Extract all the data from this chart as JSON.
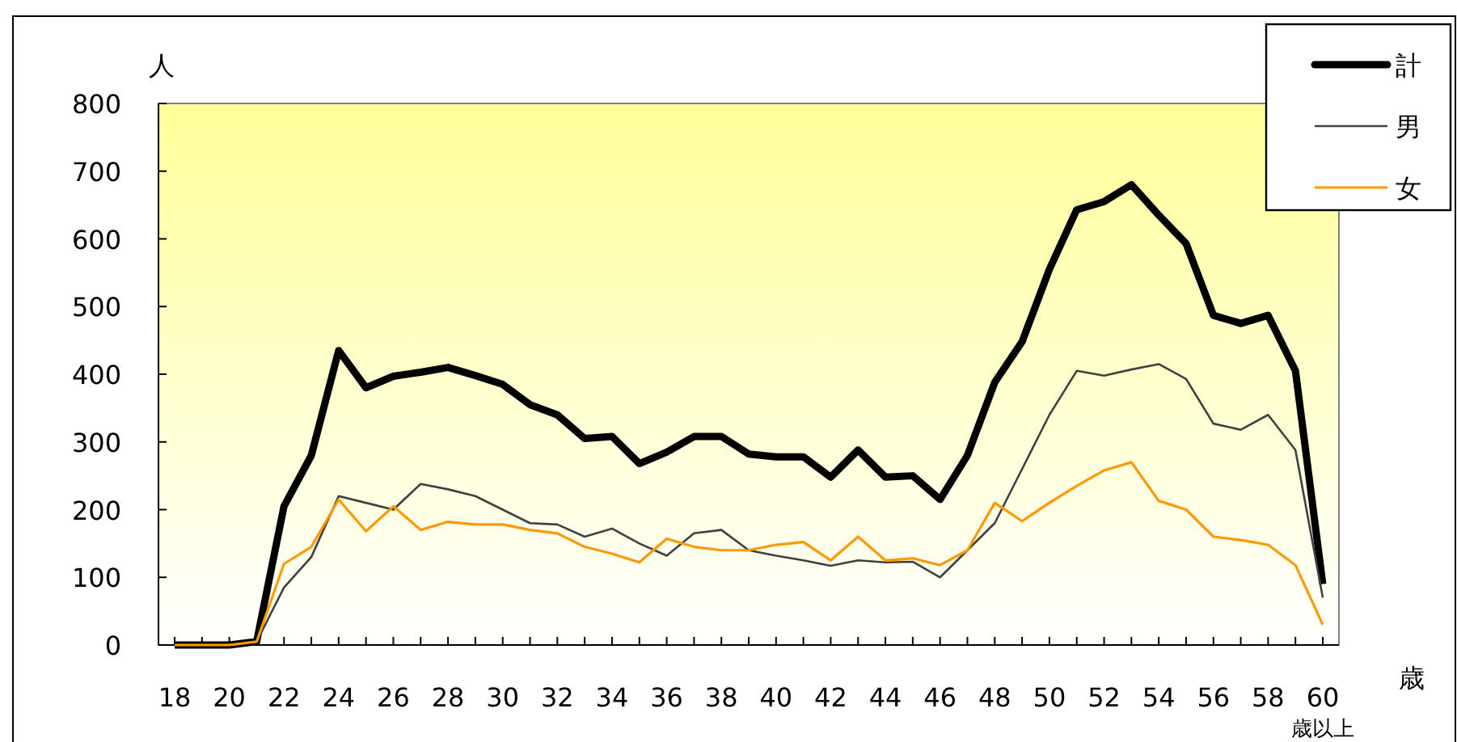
{
  "chart_data": {
    "type": "line",
    "xlabel": "歳",
    "ylabel": "人",
    "categories": [
      "18",
      null,
      "20",
      null,
      "22",
      null,
      "24",
      null,
      "26",
      null,
      "28",
      null,
      "30",
      null,
      "32",
      null,
      "34",
      null,
      "36",
      null,
      "38",
      null,
      "40",
      null,
      "42",
      null,
      "44",
      null,
      "46",
      null,
      "48",
      null,
      "50",
      null,
      "52",
      null,
      "54",
      null,
      "56",
      null,
      "58",
      null,
      "60"
    ],
    "annotations": [
      "歳以上"
    ],
    "ylim": [
      0,
      800
    ],
    "yticks": [
      0,
      100,
      200,
      300,
      400,
      500,
      600,
      700,
      800
    ],
    "legend": "top right",
    "grid": false,
    "series": [
      {
        "name": "計",
        "color": "#000000",
        "values": [
          0,
          0,
          0,
          5,
          205,
          280,
          435,
          380,
          397,
          403,
          410,
          398,
          385,
          355,
          340,
          305,
          308,
          268,
          285,
          308,
          308,
          282,
          278,
          278,
          248,
          288,
          248,
          250,
          215,
          280,
          388,
          448,
          555,
          643,
          655,
          680,
          635,
          593,
          487,
          475,
          487,
          405,
          90
        ]
      },
      {
        "name": "男",
        "color": "#404040",
        "values": [
          0,
          0,
          0,
          5,
          85,
          130,
          220,
          210,
          200,
          238,
          230,
          220,
          200,
          180,
          178,
          160,
          172,
          150,
          132,
          165,
          170,
          140,
          132,
          125,
          117,
          125,
          122,
          123,
          100,
          140,
          180,
          260,
          340,
          405,
          398,
          407,
          415,
          393,
          327,
          318,
          340,
          288,
          70
        ]
      },
      {
        "name": "女",
        "color": "#ff9900",
        "values": [
          0,
          0,
          0,
          5,
          120,
          145,
          215,
          168,
          205,
          170,
          182,
          178,
          178,
          170,
          165,
          145,
          135,
          122,
          157,
          145,
          140,
          140,
          148,
          152,
          125,
          160,
          125,
          128,
          118,
          140,
          210,
          183,
          210,
          235,
          258,
          270,
          213,
          200,
          160,
          155,
          148,
          118,
          30
        ]
      }
    ]
  }
}
